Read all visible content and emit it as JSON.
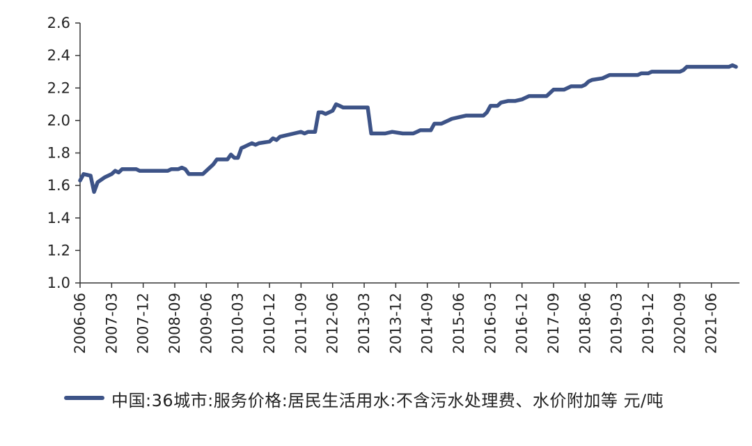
{
  "chart_data": {
    "type": "line",
    "title": "",
    "xlabel": "",
    "ylabel": "",
    "ylim": [
      1.0,
      2.6
    ],
    "y_ticks": [
      "1.0",
      "1.2",
      "1.4",
      "1.6",
      "1.8",
      "2.0",
      "2.2",
      "2.4",
      "2.6"
    ],
    "x_ticks": [
      "2006-06",
      "2007-03",
      "2007-12",
      "2008-09",
      "2009-06",
      "2010-03",
      "2010-12",
      "2011-09",
      "2012-06",
      "2013-03",
      "2013-12",
      "2014-09",
      "2015-06",
      "2016-03",
      "2016-12",
      "2017-09",
      "2018-06",
      "2019-03",
      "2019-12",
      "2020-09",
      "2021-06"
    ],
    "xlim": [
      "2006-06",
      "2022-02"
    ],
    "grid": false,
    "legend_position": "bottom",
    "series": [
      {
        "name": "中国:36城市:服务价格:居民生活用水:不含污水处理费、水价附加等 元/吨",
        "color": "#3d5387",
        "points": [
          [
            "2006-06",
            1.63
          ],
          [
            "2006-07",
            1.67
          ],
          [
            "2006-09",
            1.66
          ],
          [
            "2006-10",
            1.56
          ],
          [
            "2006-11",
            1.62
          ],
          [
            "2007-01",
            1.65
          ],
          [
            "2007-03",
            1.67
          ],
          [
            "2007-04",
            1.69
          ],
          [
            "2007-05",
            1.68
          ],
          [
            "2007-06",
            1.7
          ],
          [
            "2007-10",
            1.7
          ],
          [
            "2007-11",
            1.69
          ],
          [
            "2008-07",
            1.69
          ],
          [
            "2008-08",
            1.7
          ],
          [
            "2008-10",
            1.7
          ],
          [
            "2008-11",
            1.71
          ],
          [
            "2008-12",
            1.7
          ],
          [
            "2009-01",
            1.67
          ],
          [
            "2009-05",
            1.67
          ],
          [
            "2009-06",
            1.69
          ],
          [
            "2009-08",
            1.73
          ],
          [
            "2009-09",
            1.76
          ],
          [
            "2009-12",
            1.76
          ],
          [
            "2010-01",
            1.79
          ],
          [
            "2010-02",
            1.77
          ],
          [
            "2010-03",
            1.77
          ],
          [
            "2010-04",
            1.83
          ],
          [
            "2010-05",
            1.84
          ],
          [
            "2010-06",
            1.85
          ],
          [
            "2010-07",
            1.86
          ],
          [
            "2010-08",
            1.85
          ],
          [
            "2010-09",
            1.86
          ],
          [
            "2010-12",
            1.87
          ],
          [
            "2011-01",
            1.89
          ],
          [
            "2011-02",
            1.88
          ],
          [
            "2011-03",
            1.9
          ],
          [
            "2011-07",
            1.92
          ],
          [
            "2011-09",
            1.93
          ],
          [
            "2011-10",
            1.92
          ],
          [
            "2011-11",
            1.93
          ],
          [
            "2012-01",
            1.93
          ],
          [
            "2012-02",
            2.05
          ],
          [
            "2012-03",
            2.05
          ],
          [
            "2012-04",
            2.04
          ],
          [
            "2012-05",
            2.05
          ],
          [
            "2012-06",
            2.06
          ],
          [
            "2012-07",
            2.1
          ],
          [
            "2012-08",
            2.09
          ],
          [
            "2012-09",
            2.08
          ],
          [
            "2013-04",
            2.08
          ],
          [
            "2013-05",
            1.92
          ],
          [
            "2013-06",
            1.92
          ],
          [
            "2013-09",
            1.92
          ],
          [
            "2013-11",
            1.93
          ],
          [
            "2014-02",
            1.92
          ],
          [
            "2014-05",
            1.92
          ],
          [
            "2014-06",
            1.93
          ],
          [
            "2014-07",
            1.94
          ],
          [
            "2014-10",
            1.94
          ],
          [
            "2014-11",
            1.98
          ],
          [
            "2015-01",
            1.98
          ],
          [
            "2015-03",
            2.0
          ],
          [
            "2015-04",
            2.01
          ],
          [
            "2015-06",
            2.02
          ],
          [
            "2015-08",
            2.03
          ],
          [
            "2016-01",
            2.03
          ],
          [
            "2016-02",
            2.05
          ],
          [
            "2016-03",
            2.09
          ],
          [
            "2016-05",
            2.09
          ],
          [
            "2016-06",
            2.11
          ],
          [
            "2016-08",
            2.12
          ],
          [
            "2016-10",
            2.12
          ],
          [
            "2016-12",
            2.13
          ],
          [
            "2017-01",
            2.14
          ],
          [
            "2017-02",
            2.15
          ],
          [
            "2017-07",
            2.15
          ],
          [
            "2017-08",
            2.17
          ],
          [
            "2017-09",
            2.19
          ],
          [
            "2017-12",
            2.19
          ],
          [
            "2018-01",
            2.2
          ],
          [
            "2018-02",
            2.21
          ],
          [
            "2018-05",
            2.21
          ],
          [
            "2018-06",
            2.22
          ],
          [
            "2018-07",
            2.24
          ],
          [
            "2018-08",
            2.25
          ],
          [
            "2018-11",
            2.26
          ],
          [
            "2018-12",
            2.27
          ],
          [
            "2019-01",
            2.28
          ],
          [
            "2019-06",
            2.28
          ],
          [
            "2019-09",
            2.28
          ],
          [
            "2019-10",
            2.29
          ],
          [
            "2019-12",
            2.29
          ],
          [
            "2020-01",
            2.3
          ],
          [
            "2020-09",
            2.3
          ],
          [
            "2020-10",
            2.31
          ],
          [
            "2020-11",
            2.33
          ],
          [
            "2021-11",
            2.33
          ],
          [
            "2021-12",
            2.34
          ],
          [
            "2022-01",
            2.33
          ]
        ]
      }
    ]
  },
  "legend": {
    "label": "中国:36城市:服务价格:居民生活用水:不含污水处理费、水价附加等 元/吨"
  }
}
